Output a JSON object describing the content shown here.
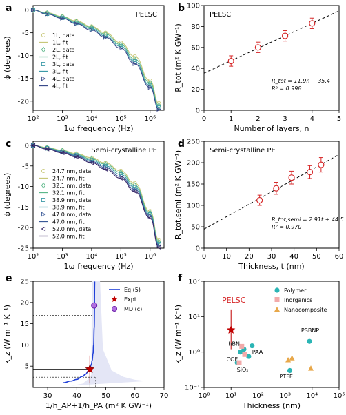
{
  "panel_labels": [
    "a",
    "b",
    "c",
    "d",
    "e",
    "f"
  ],
  "chart_data": [
    {
      "panel": "a",
      "type": "line",
      "annotation": "PELSC",
      "xlabel": "1ω frequency (Hz)",
      "ylabel": "ϕ (degrees)",
      "xscale": "log",
      "xlim": [
        100,
        3000000
      ],
      "ylim": [
        -22,
        1
      ],
      "xticks": [
        "10²",
        "10³",
        "10⁴",
        "10⁵",
        "10⁶"
      ],
      "yticks": [
        0,
        -5,
        -10,
        -15,
        -20
      ],
      "legend_position": "left",
      "legend": [
        "1L, data",
        "1L, fit",
        "2L, data",
        "2L, fit",
        "3L, data",
        "3L, fit",
        "4L, data",
        "4L, fit"
      ],
      "series": [
        {
          "name": "1L",
          "color": "#c8c87a",
          "marker": "circle",
          "x": [
            100,
            300,
            1000,
            3000,
            10000,
            30000,
            100000,
            300000,
            1000000,
            2000000
          ],
          "y": [
            0,
            -0.6,
            -1.4,
            -2.4,
            -3.6,
            -5.0,
            -7.2,
            -10.2,
            -15.5,
            -20.5
          ]
        },
        {
          "name": "2L",
          "color": "#5cb88a",
          "marker": "diamond",
          "x": [
            100,
            300,
            1000,
            3000,
            10000,
            30000,
            100000,
            300000,
            1000000,
            2000000
          ],
          "y": [
            0,
            -0.7,
            -1.5,
            -2.6,
            -3.8,
            -5.3,
            -7.6,
            -10.8,
            -16.0,
            -21.0
          ]
        },
        {
          "name": "3L",
          "color": "#3c9aa8",
          "marker": "square",
          "x": [
            100,
            300,
            1000,
            3000,
            10000,
            30000,
            100000,
            300000,
            1000000,
            2000000
          ],
          "y": [
            0,
            -0.8,
            -1.7,
            -2.8,
            -4.1,
            -5.7,
            -8.0,
            -11.3,
            -16.6,
            -21.4
          ]
        },
        {
          "name": "4L",
          "color": "#3a4a8a",
          "marker": "triangle",
          "x": [
            100,
            300,
            1000,
            3000,
            10000,
            30000,
            100000,
            300000,
            1000000,
            2000000
          ],
          "y": [
            0,
            -0.9,
            -1.8,
            -3.0,
            -4.4,
            -6.0,
            -8.4,
            -11.8,
            -17.0,
            -21.8
          ]
        }
      ]
    },
    {
      "panel": "b",
      "type": "scatter",
      "annotation": "PELSC",
      "xlabel": "Number of layers, n",
      "ylabel": "R_tot (m² K GW⁻¹)",
      "xlim": [
        0,
        5
      ],
      "ylim": [
        0,
        100
      ],
      "xticks": [
        0,
        1,
        2,
        3,
        4,
        5
      ],
      "yticks": [
        0,
        20,
        40,
        60,
        80,
        100
      ],
      "fit_equation": "R_tot = 11.9n + 35.4",
      "r2": "R² = 0.998",
      "fit": {
        "slope": 11.9,
        "intercept": 35.4
      },
      "points": [
        {
          "x": 1,
          "y": 47,
          "err": 5
        },
        {
          "x": 2,
          "y": 60,
          "err": 5
        },
        {
          "x": 3,
          "y": 71,
          "err": 5
        },
        {
          "x": 4,
          "y": 83,
          "err": 5
        }
      ]
    },
    {
      "panel": "c",
      "type": "line",
      "annotation": "Semi-crystalline PE",
      "xlabel": "1ω frequency (Hz)",
      "ylabel": "ϕ (degrees)",
      "xscale": "log",
      "xlim": [
        100,
        3000000
      ],
      "ylim": [
        -25,
        1
      ],
      "xticks": [
        "10²",
        "10³",
        "10⁴",
        "10⁵",
        "10⁶"
      ],
      "yticks": [
        0,
        -5,
        -10,
        -15,
        -20,
        -25
      ],
      "legend_position": "left",
      "legend": [
        "24.7 nm, data",
        "24.7 nm, fit",
        "32.1 nm, data",
        "32.1 nm, fit",
        "38.9 nm, data",
        "38.9 nm, fit",
        "47.0 nm, data",
        "47.0 nm, fit",
        "52.0 nm, data",
        "52.0 nm, fit"
      ],
      "series": [
        {
          "name": "24.7 nm",
          "color": "#c8c87a",
          "marker": "circle",
          "x": [
            100,
            300,
            1000,
            3000,
            10000,
            30000,
            100000,
            300000,
            1000000,
            2000000
          ],
          "y": [
            0,
            -0.5,
            -1.2,
            -2.0,
            -3.0,
            -4.3,
            -6.2,
            -9.2,
            -16.0,
            -23.0
          ]
        },
        {
          "name": "32.1 nm",
          "color": "#5cb88a",
          "marker": "diamond",
          "x": [
            100,
            300,
            1000,
            3000,
            10000,
            30000,
            100000,
            300000,
            1000000,
            2000000
          ],
          "y": [
            0,
            -0.6,
            -1.3,
            -2.2,
            -3.3,
            -4.6,
            -6.6,
            -9.7,
            -16.4,
            -23.5
          ]
        },
        {
          "name": "38.9 nm",
          "color": "#3c9aa8",
          "marker": "square",
          "x": [
            100,
            300,
            1000,
            3000,
            10000,
            30000,
            100000,
            300000,
            1000000,
            2000000
          ],
          "y": [
            0,
            -0.7,
            -1.5,
            -2.4,
            -3.6,
            -5.0,
            -7.1,
            -10.2,
            -16.8,
            -24.0
          ]
        },
        {
          "name": "47.0 nm",
          "color": "#3a5a98",
          "marker": "triangle",
          "x": [
            100,
            300,
            1000,
            3000,
            10000,
            30000,
            100000,
            300000,
            1000000,
            2000000
          ],
          "y": [
            0,
            -0.8,
            -1.6,
            -2.6,
            -3.9,
            -5.4,
            -7.6,
            -10.7,
            -17.2,
            -24.4
          ]
        },
        {
          "name": "52.0 nm",
          "color": "#3a2a6a",
          "marker": "triangle-left",
          "x": [
            100,
            300,
            1000,
            3000,
            10000,
            30000,
            100000,
            300000,
            1000000,
            2000000
          ],
          "y": [
            0,
            -0.9,
            -1.8,
            -2.8,
            -4.2,
            -5.8,
            -8.0,
            -11.2,
            -17.6,
            -24.8
          ]
        }
      ]
    },
    {
      "panel": "d",
      "type": "scatter",
      "annotation": "Semi-crystalline PE",
      "xlabel": "Thickness, t (nm)",
      "ylabel": "R_tot,semi (m² K GW⁻¹)",
      "xlim": [
        0,
        60
      ],
      "ylim": [
        0,
        250
      ],
      "xticks": [
        0,
        10,
        20,
        30,
        40,
        50,
        60
      ],
      "yticks": [
        0,
        50,
        100,
        150,
        200,
        250
      ],
      "fit_equation": "R_tot,semi = 2.91t + 44.5",
      "r2": "R² = 0.970",
      "fit": {
        "slope": 2.91,
        "intercept": 44.5
      },
      "points": [
        {
          "x": 24.7,
          "y": 112,
          "err": 12
        },
        {
          "x": 32.1,
          "y": 140,
          "err": 14
        },
        {
          "x": 38.9,
          "y": 165,
          "err": 15
        },
        {
          "x": 47.0,
          "y": 178,
          "err": 15
        },
        {
          "x": 52.0,
          "y": 195,
          "err": 17
        }
      ]
    },
    {
      "panel": "e",
      "type": "line",
      "xlabel": "1/h_AP+1/h_PA (m² K GW⁻¹)",
      "ylabel": "κ_z (W m⁻¹ K⁻¹)",
      "xlim": [
        25,
        70
      ],
      "ylim": [
        0,
        25
      ],
      "xticks": [
        30,
        40,
        50,
        60,
        70
      ],
      "yticks": [
        5,
        10,
        15,
        20,
        25
      ],
      "legend_position": "top-right",
      "legend": [
        "Eq.(5)",
        "Expt.",
        "MD (c)"
      ],
      "curve": {
        "name": "Eq.(5)",
        "x": [
          35.4,
          38,
          40,
          42,
          43,
          44,
          44.5,
          45,
          45.3,
          45.6,
          45.8,
          46.0,
          46.2
        ],
        "y": [
          1.1,
          1.5,
          1.9,
          2.6,
          3.1,
          3.9,
          4.4,
          5.4,
          6.4,
          8.0,
          10.0,
          14.0,
          25.0
        ]
      },
      "expt": {
        "name": "Expt.",
        "x": 44.5,
        "y": 4.3,
        "err": 3.2
      },
      "md": {
        "name": "MD (c)",
        "x": 46.0,
        "y": 19.3,
        "xerr": 0.8
      }
    },
    {
      "panel": "f",
      "type": "scatter",
      "xlabel": "Thickness (nm)",
      "ylabel": "κ_z (W m⁻¹ K⁻¹)",
      "xscale": "log",
      "yscale": "log",
      "xlim": [
        1,
        100000
      ],
      "ylim": [
        0.1,
        100
      ],
      "xticks": [
        "10⁰",
        "10¹",
        "10²",
        "10³",
        "10⁴",
        "10⁵"
      ],
      "yticks": [
        "10⁻¹",
        "10⁰",
        "10¹",
        "10²"
      ],
      "legend_position": "top-right",
      "legend": [
        "Polymer",
        "Inorganics",
        "Nanocomposite"
      ],
      "pelsc": {
        "label": "PELSC",
        "x": 10,
        "y": 4.2
      },
      "labels": [
        "hBN",
        "PAA",
        "COF",
        "SiO₂",
        "PSBNP",
        "PTFE"
      ],
      "series": [
        {
          "name": "Polymer",
          "color": "#2bb5b5",
          "points": [
            [
              17,
              0.5
            ],
            [
              22,
              1.0
            ],
            [
              30,
              1.2
            ],
            [
              45,
              0.75
            ],
            [
              60,
              1.5
            ],
            [
              1500,
              0.3
            ],
            [
              8000,
              2.0
            ]
          ]
        },
        {
          "name": "Inorganics",
          "color": "#f2aaaa",
          "points": [
            [
              20,
              0.5
            ],
            [
              25,
              1.45
            ],
            [
              32,
              0.85
            ]
          ]
        },
        {
          "name": "Nanocomposite",
          "color": "#e8a84a",
          "points": [
            [
              1300,
              0.6
            ],
            [
              1800,
              0.68
            ],
            [
              9000,
              0.35
            ]
          ]
        }
      ]
    }
  ]
}
